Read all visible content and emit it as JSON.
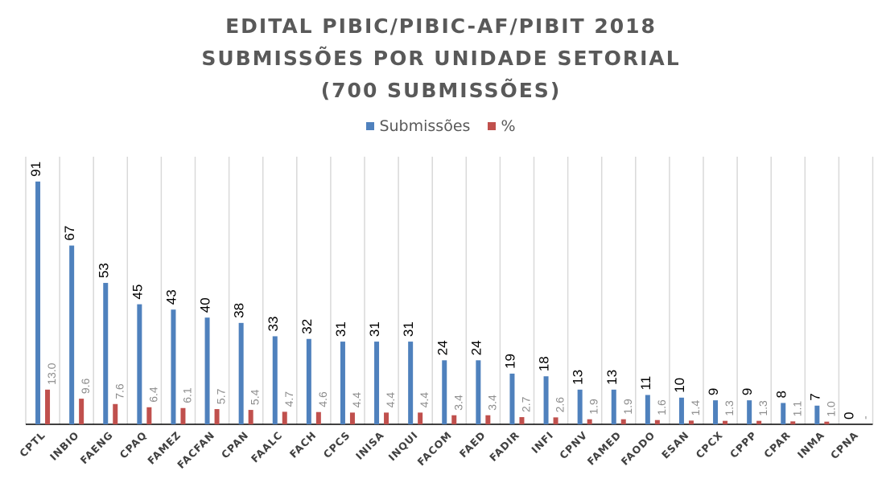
{
  "chart_data": {
    "type": "bar",
    "title": [
      "EDITAL PIBIC/PIBIC-AF/PIBIT 2018",
      "SUBMISSÕES POR UNIDADE SETORIAL",
      "(700 SUBMISSÕES)"
    ],
    "categories": [
      "CPTL",
      "INBIO",
      "FAENG",
      "CPAQ",
      "FAMEZ",
      "FACFAN",
      "CPAN",
      "FAALC",
      "FACH",
      "CPCS",
      "INISA",
      "INQUI",
      "FACOM",
      "FAED",
      "FADIR",
      "INFI",
      "CPNV",
      "FAMED",
      "FAODO",
      "ESAN",
      "CPCX",
      "CPPP",
      "CPAR",
      "INMA",
      "CPNA"
    ],
    "series": [
      {
        "name": "Submissões",
        "color": "#4F81BD",
        "values": [
          91,
          67,
          53,
          45,
          43,
          40,
          38,
          33,
          32,
          31,
          31,
          31,
          24,
          24,
          19,
          18,
          13,
          13,
          11,
          10,
          9,
          9,
          8,
          7,
          0
        ],
        "labels": [
          "91",
          "67",
          "53",
          "45",
          "43",
          "40",
          "38",
          "33",
          "32",
          "31",
          "31",
          "31",
          "24",
          "24",
          "19",
          "18",
          "13",
          "13",
          "11",
          "10",
          "9",
          "9",
          "8",
          "7",
          "0"
        ]
      },
      {
        "name": "%",
        "color": "#C0504D",
        "values": [
          13.0,
          9.6,
          7.6,
          6.4,
          6.1,
          5.7,
          5.4,
          4.7,
          4.6,
          4.4,
          4.4,
          4.4,
          3.4,
          3.4,
          2.7,
          2.6,
          1.9,
          1.9,
          1.6,
          1.4,
          1.3,
          1.3,
          1.1,
          1.0,
          0
        ],
        "labels": [
          "13.0",
          "9.6",
          "7.6",
          "6.4",
          "6.1",
          "5.7",
          "5.4",
          "4.7",
          "4.6",
          "4.4",
          "4.4",
          "4.4",
          "3.4",
          "3.4",
          "2.7",
          "2.6",
          "1.9",
          "1.9",
          "1.6",
          "1.4",
          "1.3",
          "1.3",
          "1.1",
          "1.0",
          "-"
        ]
      }
    ],
    "xlabel": "",
    "ylabel": "",
    "ylim": [
      0,
      100
    ],
    "grid": "vertical category separators",
    "legend": "top-center"
  }
}
